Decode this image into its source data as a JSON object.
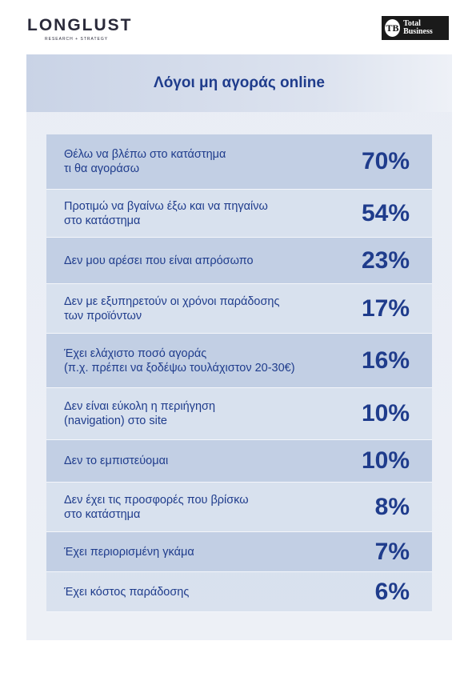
{
  "header": {
    "brand": "LONGLUST",
    "brand_tagline": "RESEARCH + STRATEGY",
    "partner_mark": "TB",
    "partner": "Total Business"
  },
  "title": "Λόγοι μη αγοράς online",
  "rows": [
    {
      "label": [
        "Θέλω να βλέπω στο κατάστημα",
        "τι θα αγοράσω"
      ],
      "value": "70%"
    },
    {
      "label": [
        "Προτιμώ να βγαίνω έξω και να πηγαίνω",
        "στο κατάστημα"
      ],
      "value": "54%"
    },
    {
      "label": [
        "Δεν μου αρέσει που είναι απρόσωπο"
      ],
      "value": "23%"
    },
    {
      "label": [
        "Δεν με εξυπηρετούν οι χρόνοι παράδοσης",
        "των προϊόντων"
      ],
      "value": "17%"
    },
    {
      "label": [
        "Έχει ελάχιστο ποσό αγοράς",
        "(π.χ. πρέπει να ξοδέψω τουλάχιστον 20-30€)"
      ],
      "value": "16%"
    },
    {
      "label": [
        "Δεν είναι εύκολη η περιήγηση",
        "(navigation) στο site"
      ],
      "value": "10%"
    },
    {
      "label": [
        "Δεν το εμπιστεύομαι"
      ],
      "value": "10%"
    },
    {
      "label": [
        "Δεν έχει τις προσφορές που βρίσκω",
        "στο κατάστημα"
      ],
      "value": "8%"
    },
    {
      "label": [
        "Έχει περιορισμένη γκάμα"
      ],
      "value": "7%"
    },
    {
      "label": [
        "Έχει κόστος παράδοσης"
      ],
      "value": "6%"
    }
  ]
}
